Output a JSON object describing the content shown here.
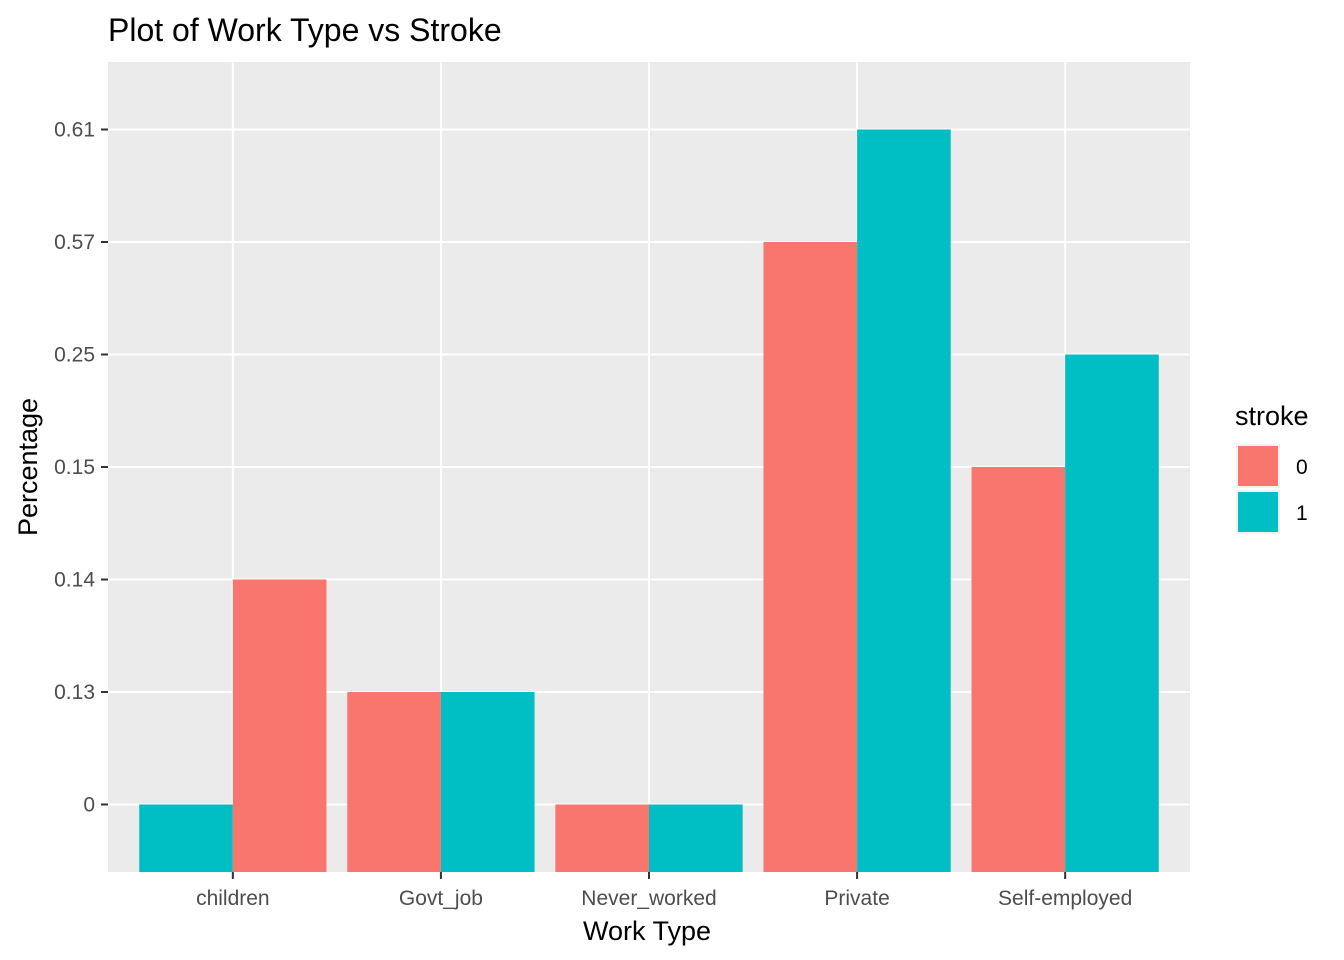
{
  "chart_data": {
    "type": "bar",
    "title": "Plot of Work Type vs Stroke",
    "xlabel": "Work Type",
    "ylabel": "Percentage",
    "categories": [
      "children",
      "Govt_job",
      "Never_worked",
      "Private",
      "Self-employed"
    ],
    "y_ticks": [
      "0",
      "0.13",
      "0.14",
      "0.15",
      "0.25",
      "0.57",
      "0.61"
    ],
    "y_scale": "categorical (discrete labels)",
    "series": [
      {
        "name": "0",
        "color": "#F8766D",
        "values": [
          "0.14",
          "0.13",
          "0",
          "0.57",
          "0.15"
        ]
      },
      {
        "name": "1",
        "color": "#00BFC4",
        "values": [
          "0",
          "0.13",
          "0",
          "0.61",
          "0.25"
        ]
      }
    ],
    "bar_order_note": "children: stroke 1 bar drawn on the left, stroke 0 on the right",
    "legend": {
      "title": "stroke",
      "placement": "right"
    },
    "grid": true,
    "panel_color": "#EBEBEB"
  }
}
